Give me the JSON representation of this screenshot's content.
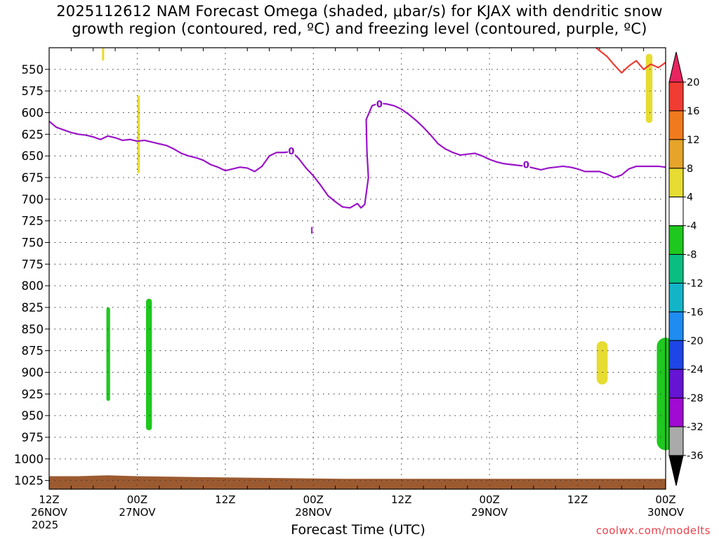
{
  "title_line1": "2025112612 NAM Forecast Omega (shaded, μbar/s) for KJAX with dendritic snow",
  "title_line2": "growth region (contoured, red, ºC) and freezing level (contoured, purple, ºC)",
  "credit": "coolwx.com/modelts",
  "chart_data": {
    "type": "heatmap",
    "title": "2025112612 NAM Forecast Omega (shaded, μbar/s) for KJAX with dendritic snow growth region (contoured, red, ºC) and freezing level (contoured, purple, ºC)",
    "xlabel": "Forecast Time (UTC)",
    "ylabel": "",
    "x_unit": "hours since 2025-11-26 12Z",
    "xlim": [
      0,
      84
    ],
    "x_ticks": [
      {
        "hour": 0,
        "label1": "12Z",
        "label2": "26NOV",
        "label3": "2025"
      },
      {
        "hour": 12,
        "label1": "00Z",
        "label2": "27NOV",
        "label3": ""
      },
      {
        "hour": 24,
        "label1": "12Z",
        "label2": "",
        "label3": ""
      },
      {
        "hour": 36,
        "label1": "00Z",
        "label2": "28NOV",
        "label3": ""
      },
      {
        "hour": 48,
        "label1": "12Z",
        "label2": "",
        "label3": ""
      },
      {
        "hour": 60,
        "label1": "00Z",
        "label2": "29NOV",
        "label3": ""
      },
      {
        "hour": 72,
        "label1": "12Z",
        "label2": "",
        "label3": ""
      },
      {
        "hour": 84,
        "label1": "00Z",
        "label2": "30NOV",
        "label3": ""
      }
    ],
    "y_unit": "hPa",
    "ylim": [
      525,
      1035
    ],
    "y_ticks": [
      550,
      575,
      600,
      625,
      650,
      675,
      700,
      725,
      750,
      775,
      800,
      825,
      850,
      875,
      900,
      925,
      950,
      975,
      1000,
      1025
    ],
    "grid": true,
    "colorbar": {
      "labels": [
        "20",
        "16",
        "12",
        "8",
        "4",
        "-4",
        "-8",
        "-12",
        "-16",
        "-20",
        "-24",
        "-28",
        "-32",
        "-36"
      ],
      "colors": [
        "#e8245e",
        "#f03c32",
        "#f07a1e",
        "#e6a42a",
        "#e6dc32",
        "#ffffff",
        "#1ec81e",
        "#0abe82",
        "#14b4c8",
        "#1e8cf0",
        "#1e46e6",
        "#6414d2",
        "#a00ad2",
        "#aaaaaa",
        "#000000"
      ]
    },
    "freezing_level": {
      "name": "freezing level",
      "color": "#9a14c8",
      "contour_value": "0",
      "points": [
        [
          0,
          610
        ],
        [
          1,
          617
        ],
        [
          2,
          620
        ],
        [
          3,
          623
        ],
        [
          4,
          625
        ],
        [
          5,
          626
        ],
        [
          6,
          628
        ],
        [
          7,
          631
        ],
        [
          8,
          627
        ],
        [
          9,
          629
        ],
        [
          10,
          632
        ],
        [
          11,
          631
        ],
        [
          12,
          633
        ],
        [
          13,
          632
        ],
        [
          14,
          634
        ],
        [
          15,
          636
        ],
        [
          16,
          638
        ],
        [
          17,
          642
        ],
        [
          18,
          647
        ],
        [
          19,
          650
        ],
        [
          20,
          652
        ],
        [
          21,
          655
        ],
        [
          22,
          660
        ],
        [
          23,
          663
        ],
        [
          24,
          667
        ],
        [
          25,
          665
        ],
        [
          26,
          663
        ],
        [
          27,
          664
        ],
        [
          28,
          668
        ],
        [
          29,
          662
        ],
        [
          30,
          650
        ],
        [
          31,
          646
        ],
        [
          32,
          646
        ],
        [
          33,
          645
        ],
        [
          34,
          653
        ],
        [
          35,
          664
        ],
        [
          36,
          673
        ],
        [
          37,
          684
        ],
        [
          38,
          696
        ],
        [
          39,
          703
        ],
        [
          40,
          709
        ],
        [
          41,
          710
        ],
        [
          42,
          705
        ],
        [
          42.5,
          710
        ],
        [
          43,
          706
        ],
        [
          43.5,
          675
        ],
        [
          43.3,
          645
        ],
        [
          43.2,
          608
        ],
        [
          44,
          592
        ],
        [
          45,
          589
        ],
        [
          46,
          590
        ],
        [
          47,
          592
        ],
        [
          48,
          596
        ],
        [
          49,
          602
        ],
        [
          50,
          609
        ],
        [
          51,
          617
        ],
        [
          52,
          626
        ],
        [
          53,
          636
        ],
        [
          54,
          642
        ],
        [
          55,
          646
        ],
        [
          56,
          649
        ],
        [
          57,
          648
        ],
        [
          58,
          647
        ],
        [
          59,
          650
        ],
        [
          60,
          654
        ],
        [
          61,
          657
        ],
        [
          62,
          659
        ],
        [
          63,
          660
        ],
        [
          64,
          661
        ],
        [
          65,
          662
        ],
        [
          66,
          664
        ],
        [
          67,
          666
        ],
        [
          68,
          664
        ],
        [
          69,
          663
        ],
        [
          70,
          662
        ],
        [
          71,
          663
        ],
        [
          72,
          665
        ],
        [
          73,
          668
        ],
        [
          74,
          668
        ],
        [
          75,
          668
        ],
        [
          76,
          671
        ],
        [
          77,
          675
        ],
        [
          78,
          672
        ],
        [
          79,
          665
        ],
        [
          80,
          662
        ],
        [
          81,
          662
        ],
        [
          82,
          662
        ],
        [
          83,
          662
        ],
        [
          84,
          663
        ]
      ],
      "labels": [
        [
          33,
          644
        ],
        [
          45,
          590
        ],
        [
          65,
          660
        ]
      ]
    },
    "dendritic_growth_region": {
      "name": "dendritic snow growth region",
      "color": "#f03c32",
      "points": [
        [
          74.5,
          525
        ],
        [
          76,
          535
        ],
        [
          77,
          545
        ],
        [
          78,
          554
        ],
        [
          79,
          546
        ],
        [
          80,
          540
        ],
        [
          81,
          550
        ],
        [
          82,
          544
        ],
        [
          83,
          548
        ],
        [
          84,
          542
        ]
      ]
    },
    "omega_shading": [
      {
        "color": "#e6dc32",
        "x": 7.2,
        "p": 525,
        "w": 0.3,
        "h": 15
      },
      {
        "color": "#e6dc32",
        "x": 12.0,
        "p": 580,
        "w": 0.35,
        "h": 90
      },
      {
        "color": "#e6dc32",
        "x": 81.3,
        "p": 532,
        "w": 0.9,
        "h": 80
      },
      {
        "color": "#e6dc32",
        "x": 74.6,
        "p": 864,
        "w": 1.5,
        "h": 50
      },
      {
        "color": "#1ec81e",
        "x": 7.8,
        "p": 825,
        "w": 0.5,
        "h": 108
      },
      {
        "color": "#1ec81e",
        "x": 13.2,
        "p": 815,
        "w": 0.8,
        "h": 152
      },
      {
        "color": "#1ec81e",
        "x": 82.8,
        "p": 860,
        "w": 2.4,
        "h": 130
      },
      {
        "color": "#9a14c8",
        "x": 35.7,
        "p": 732,
        "w": 0.18,
        "h": 8
      }
    ],
    "surface_terrain": {
      "color": "#9c5a30",
      "points": [
        [
          0,
          1020
        ],
        [
          4,
          1020
        ],
        [
          8,
          1019
        ],
        [
          12,
          1020
        ],
        [
          20,
          1021
        ],
        [
          30,
          1022
        ],
        [
          40,
          1023
        ],
        [
          50,
          1023
        ],
        [
          60,
          1023
        ],
        [
          70,
          1023
        ],
        [
          76,
          1023
        ],
        [
          80,
          1023
        ],
        [
          84,
          1023
        ]
      ]
    }
  }
}
